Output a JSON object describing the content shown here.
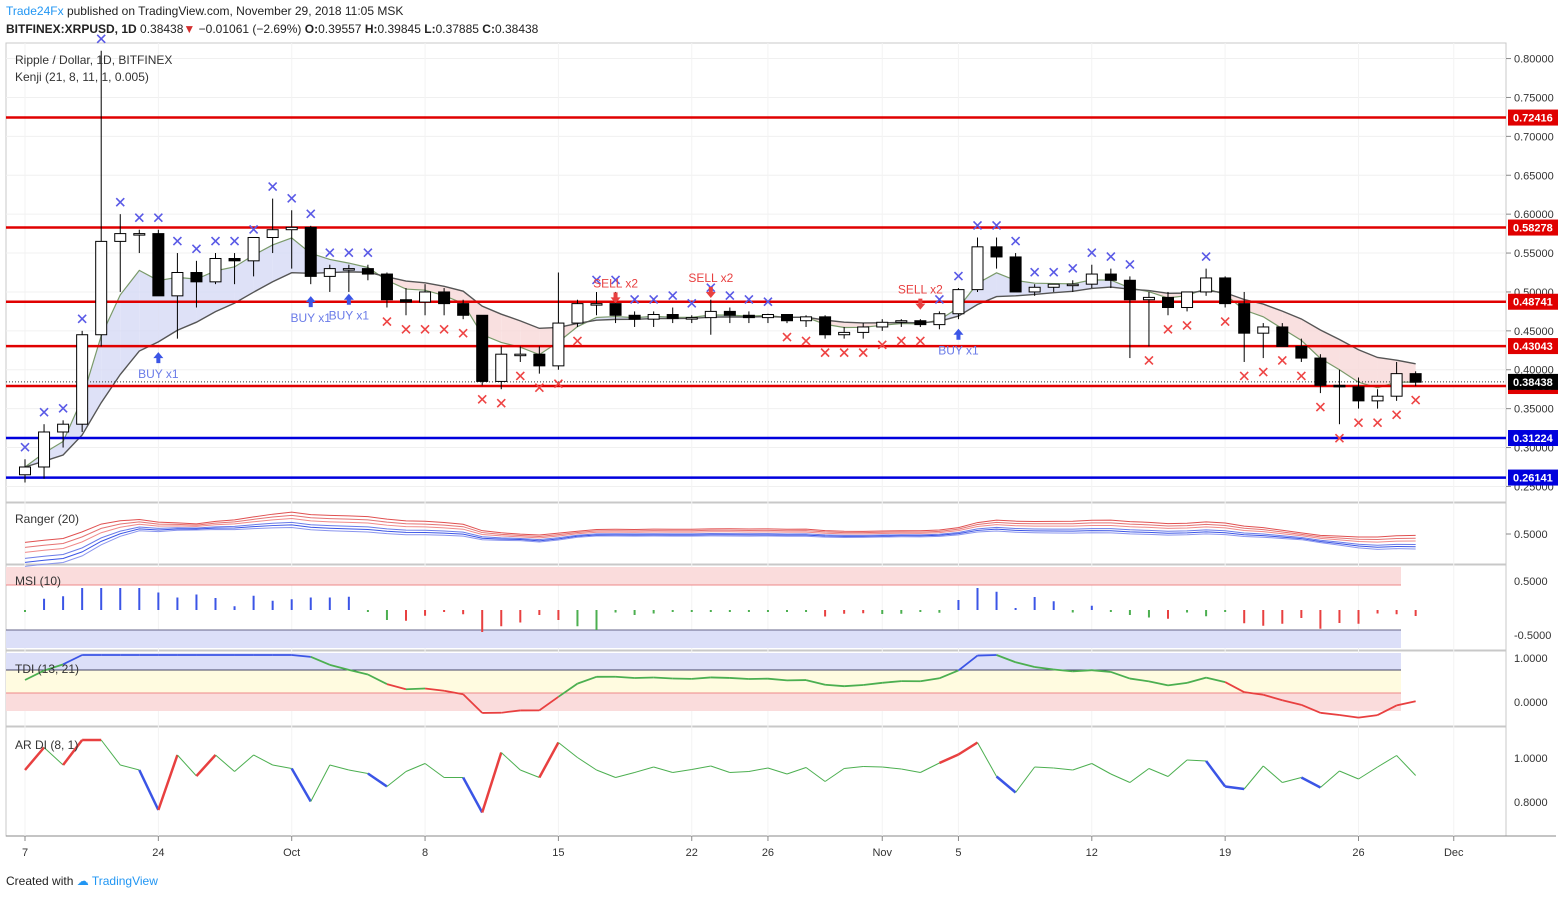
{
  "header": {
    "publisher": "Trade24Fx",
    "published_text": "published on TradingView.com, November 29, 2018 11:05 MSK"
  },
  "symbol_line": {
    "symbol": "BITFINEX:XRPUSD, 1D",
    "last": "0.38438",
    "change": "−0.01061 (−2.69%)",
    "open_label": "O:",
    "open": "0.39557",
    "high_label": "H:",
    "high": "0.39845",
    "low_label": "L:",
    "low": "0.37885",
    "close_label": "C:",
    "close": "0.38438"
  },
  "footer": {
    "created_with": "Created with",
    "brand": "TradingView"
  },
  "colors": {
    "up": "#ffffff",
    "down": "#000000",
    "red_level": "#e00000",
    "blue_level": "#0000dd",
    "cross_blue": "#5a5ae6",
    "cross_red": "#ee4444",
    "band_blue": "#d6daf5",
    "band_red": "#f8d8d8"
  },
  "chart_data": [
    {
      "type": "candlestick",
      "title": "Ripple / Dollar, 1D, BITFINEX",
      "subtitle": "Kenji (21, 8, 11, 1, 0.005)",
      "ylim": [
        0.23,
        0.82
      ],
      "yticks": [
        "0.25000",
        "0.30000",
        "0.35000",
        "0.40000",
        "0.45000",
        "0.50000",
        "0.55000",
        "0.60000",
        "0.65000",
        "0.70000",
        "0.75000",
        "0.80000"
      ],
      "x_ticks": [
        {
          "label": "7",
          "i": 0
        },
        {
          "label": "24",
          "i": 7
        },
        {
          "label": "Oct",
          "i": 14
        },
        {
          "label": "8",
          "i": 21
        },
        {
          "label": "15",
          "i": 28
        },
        {
          "label": "22",
          "i": 35
        },
        {
          "label": "26",
          "i": 39
        },
        {
          "label": "Nov",
          "i": 45
        },
        {
          "label": "5",
          "i": 49
        },
        {
          "label": "12",
          "i": 56
        },
        {
          "label": "19",
          "i": 63
        },
        {
          "label": "26",
          "i": 70
        },
        {
          "label": "Dec",
          "i": 75
        }
      ],
      "candles": [
        [
          0.265,
          0.285,
          0.255,
          0.275
        ],
        [
          0.275,
          0.33,
          0.26,
          0.32
        ],
        [
          0.32,
          0.335,
          0.3,
          0.33
        ],
        [
          0.33,
          0.45,
          0.32,
          0.445
        ],
        [
          0.445,
          0.81,
          0.43,
          0.565
        ],
        [
          0.565,
          0.6,
          0.5,
          0.575
        ],
        [
          0.575,
          0.58,
          0.55,
          0.575
        ],
        [
          0.575,
          0.58,
          0.5,
          0.495
        ],
        [
          0.495,
          0.55,
          0.44,
          0.525
        ],
        [
          0.525,
          0.54,
          0.48,
          0.513
        ],
        [
          0.513,
          0.55,
          0.51,
          0.543
        ],
        [
          0.543,
          0.55,
          0.51,
          0.54
        ],
        [
          0.54,
          0.565,
          0.52,
          0.57
        ],
        [
          0.57,
          0.62,
          0.55,
          0.58
        ],
        [
          0.58,
          0.605,
          0.53,
          0.583
        ],
        [
          0.583,
          0.585,
          0.51,
          0.52
        ],
        [
          0.52,
          0.535,
          0.5,
          0.53
        ],
        [
          0.53,
          0.535,
          0.5,
          0.53
        ],
        [
          0.53,
          0.535,
          0.515,
          0.523
        ],
        [
          0.523,
          0.525,
          0.48,
          0.49
        ],
        [
          0.49,
          0.505,
          0.47,
          0.487
        ],
        [
          0.487,
          0.51,
          0.47,
          0.5
        ],
        [
          0.5,
          0.505,
          0.47,
          0.485
        ],
        [
          0.485,
          0.49,
          0.465,
          0.47
        ],
        [
          0.47,
          0.47,
          0.38,
          0.385
        ],
        [
          0.385,
          0.43,
          0.375,
          0.42
        ],
        [
          0.42,
          0.43,
          0.41,
          0.42
        ],
        [
          0.42,
          0.43,
          0.395,
          0.405
        ],
        [
          0.405,
          0.525,
          0.4,
          0.46
        ],
        [
          0.46,
          0.49,
          0.455,
          0.485
        ],
        [
          0.485,
          0.5,
          0.47,
          0.485
        ],
        [
          0.485,
          0.5,
          0.46,
          0.47
        ],
        [
          0.47,
          0.475,
          0.455,
          0.465
        ],
        [
          0.465,
          0.475,
          0.455,
          0.471
        ],
        [
          0.471,
          0.48,
          0.46,
          0.466
        ],
        [
          0.466,
          0.47,
          0.46,
          0.467
        ],
        [
          0.467,
          0.49,
          0.445,
          0.475
        ],
        [
          0.475,
          0.48,
          0.46,
          0.47
        ],
        [
          0.47,
          0.475,
          0.46,
          0.467
        ],
        [
          0.467,
          0.472,
          0.46,
          0.471
        ],
        [
          0.471,
          0.47,
          0.46,
          0.463
        ],
        [
          0.463,
          0.47,
          0.455,
          0.468
        ],
        [
          0.468,
          0.47,
          0.44,
          0.445
        ],
        [
          0.445,
          0.455,
          0.44,
          0.448
        ],
        [
          0.448,
          0.46,
          0.44,
          0.455
        ],
        [
          0.455,
          0.465,
          0.45,
          0.461
        ],
        [
          0.461,
          0.465,
          0.455,
          0.463
        ],
        [
          0.463,
          0.465,
          0.455,
          0.458
        ],
        [
          0.458,
          0.475,
          0.452,
          0.472
        ],
        [
          0.472,
          0.505,
          0.465,
          0.503
        ],
        [
          0.503,
          0.57,
          0.5,
          0.558
        ],
        [
          0.558,
          0.57,
          0.53,
          0.545
        ],
        [
          0.545,
          0.55,
          0.5,
          0.5
        ],
        [
          0.5,
          0.51,
          0.495,
          0.506
        ],
        [
          0.506,
          0.51,
          0.5,
          0.51
        ],
        [
          0.51,
          0.515,
          0.5,
          0.51
        ],
        [
          0.51,
          0.535,
          0.505,
          0.523
        ],
        [
          0.523,
          0.53,
          0.505,
          0.515
        ],
        [
          0.515,
          0.52,
          0.415,
          0.49
        ],
        [
          0.49,
          0.5,
          0.43,
          0.493
        ],
        [
          0.493,
          0.5,
          0.47,
          0.48
        ],
        [
          0.48,
          0.5,
          0.475,
          0.5
        ],
        [
          0.5,
          0.53,
          0.495,
          0.518
        ],
        [
          0.518,
          0.52,
          0.48,
          0.485
        ],
        [
          0.485,
          0.5,
          0.41,
          0.447
        ],
        [
          0.447,
          0.46,
          0.415,
          0.455
        ],
        [
          0.455,
          0.46,
          0.43,
          0.43
        ],
        [
          0.43,
          0.44,
          0.41,
          0.415
        ],
        [
          0.415,
          0.42,
          0.37,
          0.38
        ],
        [
          0.38,
          0.4,
          0.33,
          0.378
        ],
        [
          0.378,
          0.39,
          0.35,
          0.36
        ],
        [
          0.36,
          0.375,
          0.35,
          0.366
        ],
        [
          0.366,
          0.41,
          0.36,
          0.395
        ],
        [
          0.395,
          0.398,
          0.379,
          0.384
        ]
      ],
      "horizontal_levels": [
        {
          "value": 0.72416,
          "label": "0.72416",
          "color": "red"
        },
        {
          "value": 0.58278,
          "label": "0.58278",
          "color": "red"
        },
        {
          "value": 0.48741,
          "label": "0.48741",
          "color": "red"
        },
        {
          "value": 0.43043,
          "label": "0.43043",
          "color": "red"
        },
        {
          "value": 0.37906,
          "label": "0.37906",
          "color": "red"
        },
        {
          "value": 0.31224,
          "label": "0.31224",
          "color": "blue"
        },
        {
          "value": 0.26141,
          "label": "0.26141",
          "color": "blue"
        }
      ],
      "last_price": {
        "value": 0.38438,
        "label": "0.38438"
      },
      "signals": [
        {
          "i": 7,
          "text": "BUY x1",
          "dir": "buy",
          "price": 0.415
        },
        {
          "i": 15,
          "text": "BUY x1",
          "dir": "buy",
          "price": 0.487
        },
        {
          "i": 17,
          "text": "BUY x1",
          "dir": "buy",
          "price": 0.49
        },
        {
          "i": 31,
          "text": "SELL x2",
          "dir": "sell",
          "price": 0.493
        },
        {
          "i": 36,
          "text": "SELL x2",
          "dir": "sell",
          "price": 0.5
        },
        {
          "i": 47,
          "text": "SELL x2",
          "dir": "sell",
          "price": 0.485
        },
        {
          "i": 49,
          "text": "BUY x1",
          "dir": "buy",
          "price": 0.445
        }
      ]
    },
    {
      "type": "line",
      "title": "Ranger (20)",
      "yticks": [
        "0.5000"
      ]
    },
    {
      "type": "bar",
      "title": "MSI (10)",
      "yticks": [
        "0.5000",
        "-0.5000"
      ]
    },
    {
      "type": "line",
      "title": "TDI (13, 21)",
      "yticks": [
        "1.0000",
        "0.0000"
      ]
    },
    {
      "type": "line",
      "title": "AR DI (8, 1)",
      "yticks": [
        "1.0000",
        "0.8000"
      ]
    }
  ]
}
